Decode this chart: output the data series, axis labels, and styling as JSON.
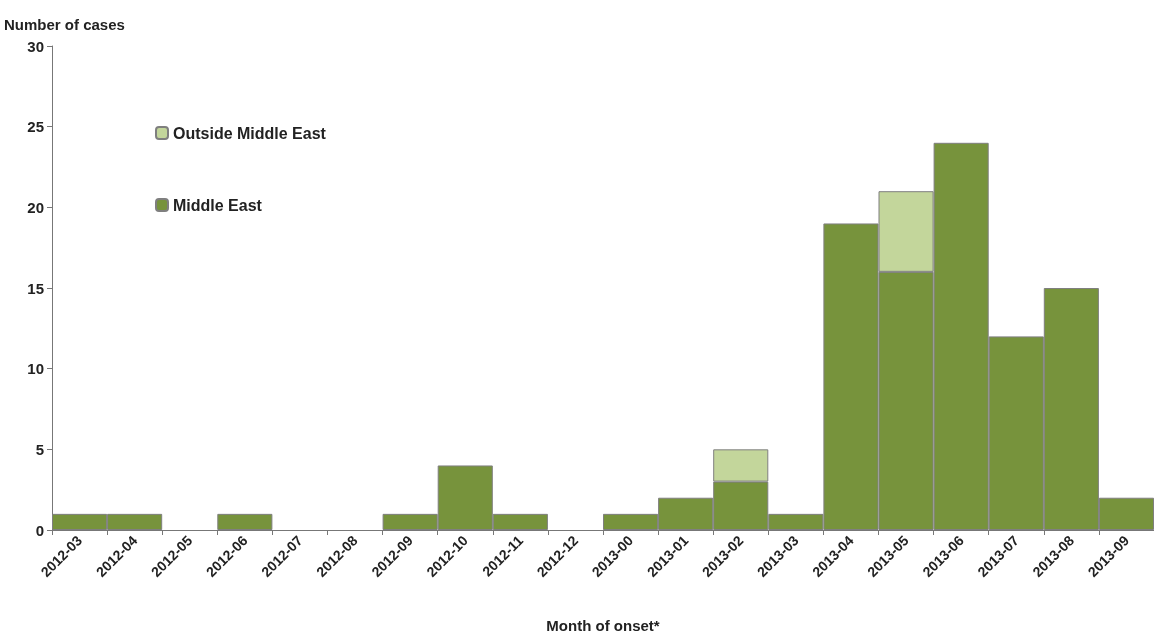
{
  "chart_data": {
    "type": "bar",
    "stacked": true,
    "xlabel": "Month of onset*",
    "ylabel": "Number of cases",
    "categories": [
      "2012-03",
      "2012-04",
      "2012-05",
      "2012-06",
      "2012-07",
      "2012-08",
      "2012-09",
      "2012-10",
      "2012-11",
      "2012-12",
      "2013-00",
      "2013-01",
      "2013-02",
      "2013-03",
      "2013-04",
      "2013-05",
      "2013-06",
      "2013-07",
      "2013-08",
      "2013-09"
    ],
    "series": [
      {
        "name": "Middle East",
        "color": "#77933c",
        "values": [
          1,
          1,
          0,
          1,
          0,
          0,
          1,
          4,
          1,
          0,
          1,
          2,
          3,
          1,
          19,
          16,
          24,
          12,
          15,
          2
        ]
      },
      {
        "name": "Outside Middle East",
        "color": "#c3d69b",
        "values": [
          0,
          0,
          0,
          0,
          0,
          0,
          0,
          0,
          0,
          0,
          0,
          0,
          2,
          0,
          0,
          5,
          0,
          0,
          0,
          0
        ]
      }
    ],
    "ylim": [
      0,
      30
    ],
    "yticks": [
      0,
      5,
      10,
      15,
      20,
      25,
      30
    ],
    "grid": false,
    "legend": "top left"
  }
}
